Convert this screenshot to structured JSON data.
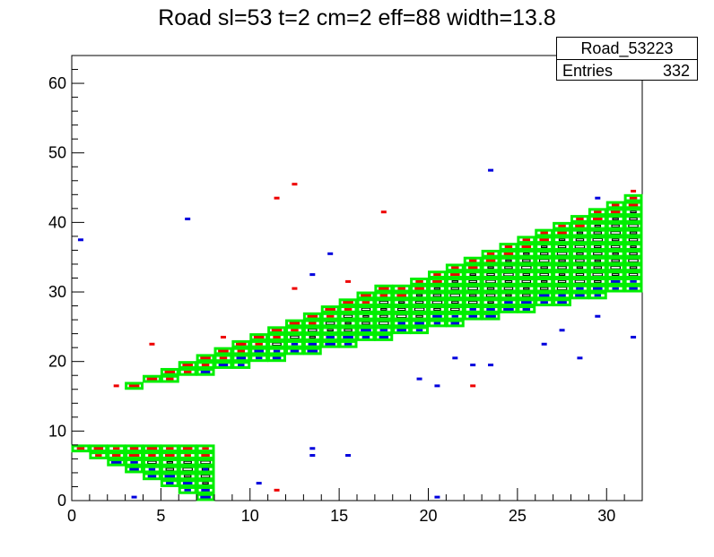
{
  "chart_data": {
    "type": "heatmap",
    "title": "Road sl=53 t=2 cm=2 eff=88 width=13.8",
    "xlabel": "",
    "ylabel": "",
    "xlim": [
      0,
      32
    ],
    "ylim": [
      0,
      64
    ],
    "x_ticks": [
      "0",
      "5",
      "10",
      "15",
      "20",
      "25",
      "30"
    ],
    "y_ticks": [
      "0",
      "10",
      "20",
      "30",
      "40",
      "50",
      "60"
    ],
    "grid": false,
    "colors": {
      "road": "#00ee00",
      "upper_edge": "#ee0000",
      "lower_edge": "#0000dd",
      "core": "#000000"
    },
    "stats": {
      "name": "Road_53223",
      "entries_label": "Entries",
      "entries": "332"
    },
    "road_bands": [
      {
        "x_from": 0,
        "x_to": 8,
        "y_low_start": 0,
        "y_low_end": -7,
        "y_high_start": 8,
        "y_high_end": 8
      },
      {
        "x_from": 3,
        "x_to": 32,
        "y_low_start": 16,
        "y_low_end": 30,
        "y_high_start": 17,
        "y_high_end": 44
      }
    ],
    "outliers": [
      {
        "x": 0.5,
        "y": 37.5,
        "c": "lower_edge"
      },
      {
        "x": 2.5,
        "y": 16.5,
        "c": "upper_edge"
      },
      {
        "x": 4.5,
        "y": 22.5,
        "c": "upper_edge"
      },
      {
        "x": 6.5,
        "y": 40.5,
        "c": "lower_edge"
      },
      {
        "x": 7.5,
        "y": 4.5,
        "c": "lower_edge"
      },
      {
        "x": 10.5,
        "y": 2.5,
        "c": "lower_edge"
      },
      {
        "x": 11.5,
        "y": 1.5,
        "c": "upper_edge"
      },
      {
        "x": 11.5,
        "y": 43.5,
        "c": "upper_edge"
      },
      {
        "x": 12.5,
        "y": 45.5,
        "c": "upper_edge"
      },
      {
        "x": 12.5,
        "y": 30.5,
        "c": "upper_edge"
      },
      {
        "x": 13.5,
        "y": 32.5,
        "c": "lower_edge"
      },
      {
        "x": 13.5,
        "y": 7.5,
        "c": "lower_edge"
      },
      {
        "x": 13.5,
        "y": 6.5,
        "c": "lower_edge"
      },
      {
        "x": 14.5,
        "y": 35.5,
        "c": "lower_edge"
      },
      {
        "x": 15.5,
        "y": 6.5,
        "c": "lower_edge"
      },
      {
        "x": 17.5,
        "y": 41.5,
        "c": "upper_edge"
      },
      {
        "x": 19.5,
        "y": 17.5,
        "c": "lower_edge"
      },
      {
        "x": 20.5,
        "y": 16.5,
        "c": "lower_edge"
      },
      {
        "x": 20.5,
        "y": 0.5,
        "c": "lower_edge"
      },
      {
        "x": 21.5,
        "y": 20.5,
        "c": "lower_edge"
      },
      {
        "x": 22.5,
        "y": 19.5,
        "c": "lower_edge"
      },
      {
        "x": 22.5,
        "y": 16.5,
        "c": "upper_edge"
      },
      {
        "x": 23.5,
        "y": 47.5,
        "c": "lower_edge"
      },
      {
        "x": 23.5,
        "y": 19.5,
        "c": "lower_edge"
      },
      {
        "x": 26.5,
        "y": 22.5,
        "c": "lower_edge"
      },
      {
        "x": 27.5,
        "y": 24.5,
        "c": "lower_edge"
      },
      {
        "x": 28.5,
        "y": 20.5,
        "c": "lower_edge"
      },
      {
        "x": 29.5,
        "y": 43.5,
        "c": "lower_edge"
      },
      {
        "x": 29.5,
        "y": 26.5,
        "c": "lower_edge"
      },
      {
        "x": 31.5,
        "y": 23.5,
        "c": "lower_edge"
      },
      {
        "x": 31.5,
        "y": 44.5,
        "c": "upper_edge"
      },
      {
        "x": 3.5,
        "y": 0.5,
        "c": "lower_edge"
      },
      {
        "x": 9.5,
        "y": 22.5,
        "c": "upper_edge"
      },
      {
        "x": 8.5,
        "y": 23.5,
        "c": "upper_edge"
      },
      {
        "x": 15.5,
        "y": 31.5,
        "c": "upper_edge"
      }
    ]
  }
}
